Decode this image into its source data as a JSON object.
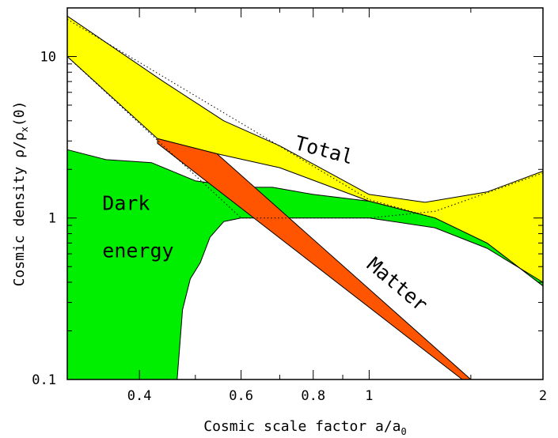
{
  "chart_data": {
    "type": "area",
    "x_scale": "log",
    "y_scale": "log",
    "xlim": [
      0.3,
      2
    ],
    "ylim": [
      0.1,
      20
    ],
    "xlabel": "Cosmic scale factor a/a",
    "xlabel_sub": "0",
    "ylabel": "Cosmic density ρ/ρ",
    "ylabel_sub": "x",
    "ylabel_suffix": "(0)",
    "x_ticks": [
      {
        "value": 0.4,
        "label": "0.4"
      },
      {
        "value": 0.6,
        "label": "0.6"
      },
      {
        "value": 0.8,
        "label": "0.8"
      },
      {
        "value": 1,
        "label": "1"
      },
      {
        "value": 2,
        "label": "2"
      }
    ],
    "y_ticks": [
      {
        "value": 0.1,
        "label": "0.1"
      },
      {
        "value": 1,
        "label": "1"
      },
      {
        "value": 10,
        "label": "10"
      }
    ],
    "x_minor_ticks": [
      0.5,
      0.7,
      0.9,
      1.5
    ],
    "y_minor_ticks": [
      0.2,
      0.3,
      0.4,
      0.5,
      0.6,
      0.7,
      0.8,
      0.9,
      2,
      3,
      4,
      5,
      6,
      7,
      8,
      9,
      20
    ],
    "grid": false,
    "legend": "none",
    "bands": [
      {
        "key": "total",
        "name": "Total",
        "color": "#ffff00",
        "upper": [
          [
            0.3,
            17.8
          ],
          [
            0.44,
            7.0
          ],
          [
            0.56,
            4.0
          ],
          [
            0.7,
            2.8
          ],
          [
            1.0,
            1.4
          ],
          [
            1.25,
            1.25
          ],
          [
            1.6,
            1.45
          ],
          [
            2.0,
            1.95
          ]
        ],
        "lower": [
          [
            0.3,
            10.0
          ],
          [
            0.43,
            3.1
          ],
          [
            0.545,
            2.5
          ],
          [
            0.7,
            2.05
          ],
          [
            1.0,
            1.27
          ],
          [
            1.3,
            1.0
          ],
          [
            1.6,
            0.7
          ],
          [
            2.0,
            0.38
          ]
        ]
      },
      {
        "key": "dark-energy",
        "name": "Dark energy",
        "color": "#00ee00",
        "upper": [
          [
            0.3,
            2.65
          ],
          [
            0.35,
            2.3
          ],
          [
            0.42,
            2.2
          ],
          [
            0.5,
            1.7
          ],
          [
            0.6,
            1.55
          ],
          [
            0.68,
            1.55
          ],
          [
            0.8,
            1.4
          ],
          [
            1.0,
            1.27
          ],
          [
            1.3,
            1.0
          ],
          [
            1.6,
            0.7
          ],
          [
            2.0,
            0.38
          ]
        ],
        "lower": [
          [
            0.3,
            0.1
          ],
          [
            0.465,
            0.1
          ],
          [
            0.475,
            0.27
          ],
          [
            0.49,
            0.42
          ],
          [
            0.51,
            0.53
          ],
          [
            0.53,
            0.76
          ],
          [
            0.56,
            0.95
          ],
          [
            0.6,
            1.0
          ],
          [
            1.0,
            1.0
          ],
          [
            1.3,
            0.87
          ],
          [
            1.6,
            0.65
          ],
          [
            2.0,
            0.4
          ]
        ]
      },
      {
        "key": "matter",
        "name": "Matter",
        "color": "#ff5500",
        "upper": [
          [
            0.43,
            3.1
          ],
          [
            0.545,
            2.5
          ],
          [
            1.5,
            0.1
          ]
        ],
        "lower": [
          [
            0.43,
            3.1
          ],
          [
            0.43,
            2.9
          ],
          [
            1.45,
            0.1
          ]
        ]
      }
    ],
    "dotted_lines": [
      {
        "key": "dotted-line-upper",
        "points": [
          [
            0.3,
            17.0
          ],
          [
            1.0,
            1.3
          ],
          [
            1.3,
            1.0
          ]
        ]
      },
      {
        "key": "dotted-line-lower",
        "points": [
          [
            0.3,
            10.0
          ],
          [
            0.6,
            1.0
          ],
          [
            1.0,
            1.0
          ],
          [
            1.3,
            1.1
          ],
          [
            2.0,
            1.9
          ]
        ]
      }
    ],
    "annotations": [
      {
        "key": "total-label",
        "text": "Total",
        "x": 0.83,
        "y": 2.4,
        "rotation": 15
      },
      {
        "key": "dark-energy-label-line1",
        "text": "Dark",
        "x": 0.345,
        "y": 1.12,
        "rotation": 0
      },
      {
        "key": "dark-energy-label-line2",
        "text": "energy",
        "x": 0.345,
        "y": 0.57,
        "rotation": 0
      },
      {
        "key": "matter-label",
        "text": "Matter",
        "x": 1.1,
        "y": 0.36,
        "rotation": 40
      }
    ]
  }
}
